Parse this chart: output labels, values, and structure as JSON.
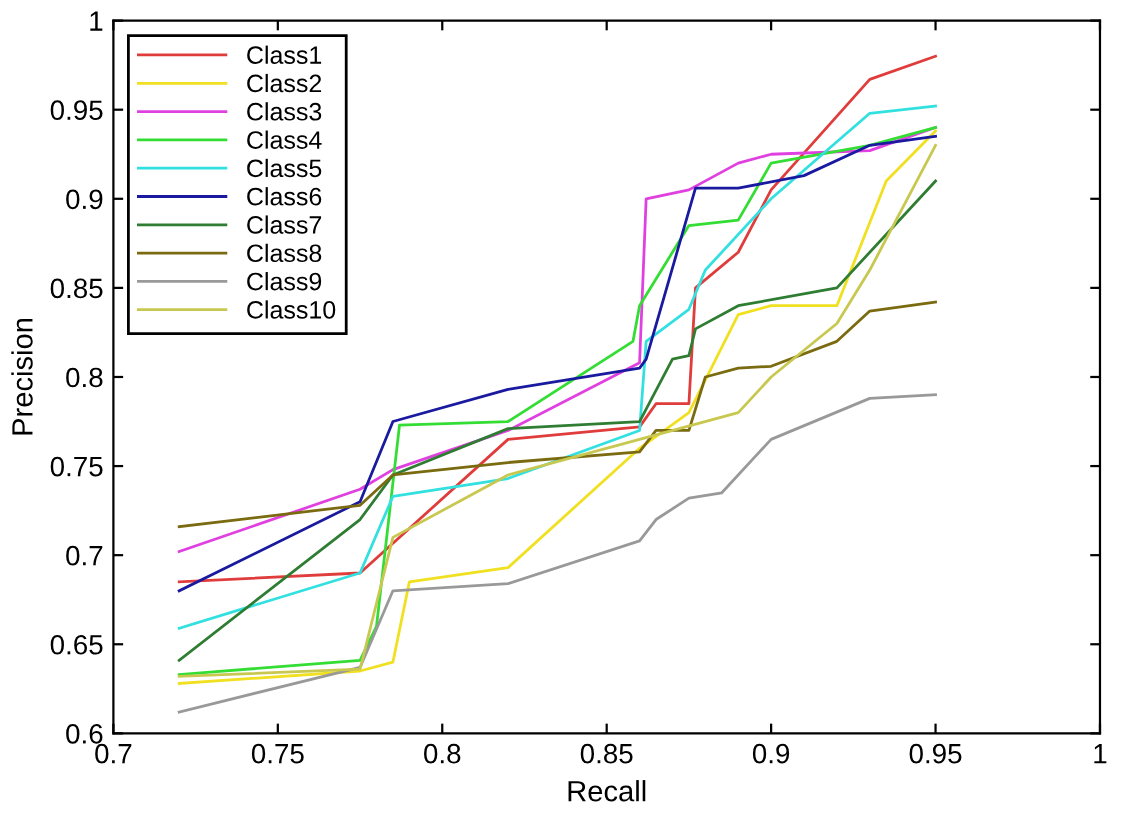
{
  "chart_data": {
    "type": "line",
    "xlabel": "Recall",
    "ylabel": "Precision",
    "xlim": [
      0.7,
      1
    ],
    "ylim": [
      0.6,
      1
    ],
    "xticks": [
      0.7,
      0.75,
      0.8,
      0.85,
      0.9,
      0.95,
      1
    ],
    "yticks": [
      0.6,
      0.65,
      0.7,
      0.75,
      0.8,
      0.85,
      0.9,
      0.95,
      1
    ],
    "grid": false,
    "legend": "top left",
    "marker": "none",
    "line_style": "solid",
    "series": [
      {
        "name": "Class1",
        "color": "#e03c3c",
        "x": [
          0.72,
          0.775,
          0.82,
          0.86,
          0.865,
          0.875,
          0.877,
          0.89,
          0.9,
          0.93,
          0.95
        ],
        "values": [
          0.685,
          0.69,
          0.765,
          0.772,
          0.785,
          0.785,
          0.85,
          0.87,
          0.905,
          0.967,
          0.98
        ]
      },
      {
        "name": "Class2",
        "color": "#f0e020",
        "x": [
          0.72,
          0.775,
          0.785,
          0.79,
          0.82,
          0.86,
          0.875,
          0.89,
          0.9,
          0.92,
          0.935,
          0.95
        ],
        "values": [
          0.628,
          0.635,
          0.64,
          0.685,
          0.693,
          0.76,
          0.78,
          0.835,
          0.84,
          0.84,
          0.91,
          0.938
        ]
      },
      {
        "name": "Class3",
        "color": "#e040e0",
        "x": [
          0.72,
          0.775,
          0.785,
          0.82,
          0.86,
          0.862,
          0.875,
          0.89,
          0.9,
          0.93,
          0.95
        ],
        "values": [
          0.702,
          0.737,
          0.748,
          0.77,
          0.808,
          0.9,
          0.905,
          0.92,
          0.925,
          0.927,
          0.94
        ]
      },
      {
        "name": "Class4",
        "color": "#33dd33",
        "x": [
          0.72,
          0.775,
          0.78,
          0.787,
          0.82,
          0.858,
          0.86,
          0.875,
          0.89,
          0.9,
          0.93,
          0.95
        ],
        "values": [
          0.633,
          0.641,
          0.66,
          0.773,
          0.775,
          0.82,
          0.84,
          0.885,
          0.888,
          0.92,
          0.93,
          0.94
        ]
      },
      {
        "name": "Class5",
        "color": "#33e0e0",
        "x": [
          0.72,
          0.775,
          0.785,
          0.82,
          0.86,
          0.862,
          0.875,
          0.88,
          0.9,
          0.93,
          0.95
        ],
        "values": [
          0.659,
          0.69,
          0.733,
          0.743,
          0.77,
          0.82,
          0.838,
          0.86,
          0.9,
          0.948,
          0.952
        ]
      },
      {
        "name": "Class6",
        "color": "#1a1aa0",
        "x": [
          0.72,
          0.775,
          0.785,
          0.82,
          0.86,
          0.862,
          0.877,
          0.89,
          0.91,
          0.93,
          0.95
        ],
        "values": [
          0.68,
          0.73,
          0.775,
          0.793,
          0.805,
          0.81,
          0.906,
          0.906,
          0.913,
          0.93,
          0.935
        ]
      },
      {
        "name": "Class7",
        "color": "#2e7d32",
        "x": [
          0.72,
          0.775,
          0.785,
          0.82,
          0.86,
          0.87,
          0.875,
          0.877,
          0.89,
          0.92,
          0.95
        ],
        "values": [
          0.641,
          0.72,
          0.745,
          0.771,
          0.775,
          0.81,
          0.812,
          0.827,
          0.84,
          0.85,
          0.91
        ]
      },
      {
        "name": "Class8",
        "color": "#7a6a10",
        "x": [
          0.72,
          0.775,
          0.785,
          0.82,
          0.86,
          0.865,
          0.875,
          0.88,
          0.89,
          0.9,
          0.92,
          0.93,
          0.95
        ],
        "values": [
          0.716,
          0.728,
          0.745,
          0.752,
          0.758,
          0.77,
          0.77,
          0.8,
          0.805,
          0.806,
          0.82,
          0.837,
          0.842
        ]
      },
      {
        "name": "Class9",
        "color": "#999999",
        "x": [
          0.72,
          0.775,
          0.785,
          0.82,
          0.86,
          0.865,
          0.875,
          0.885,
          0.9,
          0.93,
          0.95
        ],
        "values": [
          0.612,
          0.637,
          0.68,
          0.684,
          0.708,
          0.72,
          0.732,
          0.735,
          0.765,
          0.788,
          0.79
        ]
      },
      {
        "name": "Class10",
        "color": "#c8c850",
        "x": [
          0.72,
          0.775,
          0.785,
          0.82,
          0.86,
          0.89,
          0.9,
          0.92,
          0.93,
          0.95
        ],
        "values": [
          0.632,
          0.636,
          0.71,
          0.745,
          0.765,
          0.78,
          0.8,
          0.83,
          0.86,
          0.93
        ]
      }
    ]
  }
}
